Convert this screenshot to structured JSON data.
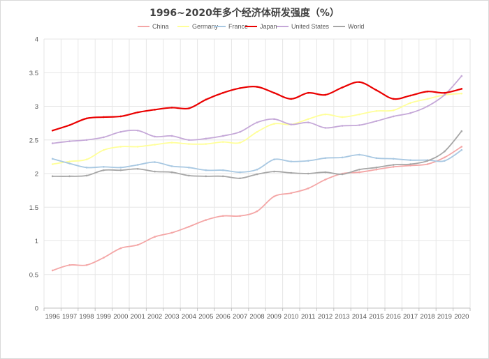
{
  "chart_data": {
    "type": "line",
    "title": "1996~2020年多个经济体研发强度（%）",
    "xlabel": "",
    "ylabel": "",
    "ylim": [
      0,
      4
    ],
    "yticks": [
      "0",
      "0.5",
      "1",
      "1.5",
      "2",
      "2.5",
      "3",
      "3.5",
      "4"
    ],
    "grid": "vertical and horizontal",
    "legend_position": "top",
    "categories": [
      "1996",
      "1997",
      "1998",
      "1999",
      "2000",
      "2001",
      "2002",
      "2003",
      "2004",
      "2005",
      "2006",
      "2007",
      "2008",
      "2009",
      "2010",
      "2011",
      "2012",
      "2013",
      "2014",
      "2015",
      "2016",
      "2017",
      "2018",
      "2019",
      "2020"
    ],
    "series": [
      {
        "name": "China",
        "color": "#f4a6a6",
        "values": [
          0.56,
          0.64,
          0.64,
          0.75,
          0.89,
          0.94,
          1.06,
          1.12,
          1.21,
          1.31,
          1.37,
          1.37,
          1.44,
          1.66,
          1.71,
          1.78,
          1.91,
          2.0,
          2.02,
          2.06,
          2.1,
          2.12,
          2.14,
          2.24,
          2.4
        ]
      },
      {
        "name": "Germany",
        "color": "#ffff99",
        "values": [
          2.14,
          2.18,
          2.21,
          2.35,
          2.4,
          2.4,
          2.43,
          2.46,
          2.44,
          2.44,
          2.47,
          2.46,
          2.62,
          2.74,
          2.73,
          2.81,
          2.88,
          2.84,
          2.88,
          2.93,
          2.94,
          3.05,
          3.11,
          3.17,
          3.19
        ]
      },
      {
        "name": "France",
        "color": "#a8c8e2",
        "values": [
          2.22,
          2.15,
          2.09,
          2.1,
          2.09,
          2.13,
          2.17,
          2.11,
          2.09,
          2.05,
          2.05,
          2.02,
          2.06,
          2.21,
          2.18,
          2.19,
          2.23,
          2.24,
          2.28,
          2.23,
          2.22,
          2.2,
          2.2,
          2.19,
          2.35
        ]
      },
      {
        "name": "Japan",
        "color": "#ea0000",
        "values": [
          2.64,
          2.72,
          2.82,
          2.84,
          2.85,
          2.91,
          2.95,
          2.98,
          2.97,
          3.1,
          3.2,
          3.27,
          3.29,
          3.2,
          3.11,
          3.2,
          3.17,
          3.28,
          3.36,
          3.24,
          3.11,
          3.16,
          3.22,
          3.2,
          3.26
        ]
      },
      {
        "name": "United States",
        "color": "#c5a8d8",
        "values": [
          2.45,
          2.48,
          2.5,
          2.54,
          2.62,
          2.64,
          2.55,
          2.56,
          2.5,
          2.52,
          2.56,
          2.62,
          2.76,
          2.81,
          2.73,
          2.76,
          2.68,
          2.71,
          2.72,
          2.78,
          2.85,
          2.9,
          3.0,
          3.17,
          3.45
        ]
      },
      {
        "name": "World",
        "color": "#a6a6a6",
        "values": [
          1.96,
          1.96,
          1.97,
          2.05,
          2.05,
          2.07,
          2.03,
          2.02,
          1.97,
          1.96,
          1.96,
          1.93,
          1.99,
          2.03,
          2.01,
          2.0,
          2.02,
          1.99,
          2.06,
          2.09,
          2.13,
          2.14,
          2.19,
          2.33,
          2.63
        ]
      }
    ]
  }
}
